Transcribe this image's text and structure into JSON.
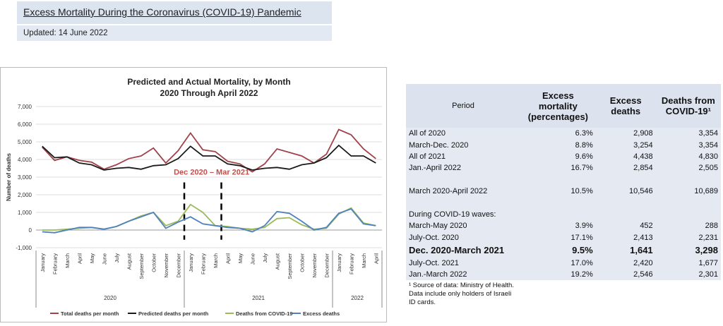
{
  "header": {
    "title": "Excess Mortality During the Coronavirus (COVID-19) Pandemic",
    "updated": "Updated: 14 June 2022"
  },
  "annotation": "Dec 2020 – Mar 2021",
  "colors": {
    "total": "#a0424a",
    "predicted": "#1a1a1a",
    "covid": "#9bbb59",
    "excess": "#4f81bd",
    "annotation": "#c0504d"
  },
  "chart_data": {
    "type": "line",
    "title": "Predicted and Actual Mortality, by Month",
    "subtitle": "2020 Through April 2022",
    "ylabel": "Number of deaths",
    "ylim": [
      -1000,
      7000
    ],
    "yticks": [
      "7,000",
      "6,000",
      "5,000",
      "4,000",
      "3,000",
      "2,000",
      "1,000",
      "0",
      "-1,000"
    ],
    "categories": [
      "January",
      "February",
      "March",
      "April",
      "May",
      "June",
      "July",
      "August",
      "September",
      "October",
      "November",
      "December",
      "January",
      "February",
      "March",
      "April",
      "May",
      "June",
      "July",
      "August",
      "September",
      "October",
      "November",
      "December",
      "January",
      "February",
      "March",
      "April"
    ],
    "years": [
      {
        "label": "2020",
        "from": 0,
        "to": 11
      },
      {
        "label": "2021",
        "from": 12,
        "to": 23
      },
      {
        "label": "2022",
        "from": 24,
        "to": 27
      }
    ],
    "series": [
      {
        "name": "Total deaths per month",
        "values": [
          4700,
          3950,
          4150,
          3950,
          3850,
          3450,
          3700,
          4050,
          4200,
          4650,
          3800,
          4500,
          5500,
          4550,
          4450,
          3900,
          3750,
          3300,
          3750,
          4600,
          4400,
          4200,
          3800,
          4300,
          5700,
          5400,
          4600,
          4050
        ]
      },
      {
        "name": "Predicted deaths per month",
        "values": [
          4750,
          4100,
          4150,
          3800,
          3700,
          3400,
          3500,
          3550,
          3450,
          3650,
          3700,
          4050,
          4750,
          4200,
          4200,
          3750,
          3650,
          3400,
          3500,
          3550,
          3450,
          3700,
          3800,
          4100,
          4800,
          4200,
          4200,
          3800
        ]
      },
      {
        "name": "Deaths from COVID-19",
        "values": [
          0,
          0,
          50,
          100,
          150,
          50,
          200,
          500,
          800,
          1000,
          250,
          500,
          1450,
          1000,
          250,
          200,
          100,
          50,
          150,
          650,
          700,
          300,
          50,
          100,
          900,
          1250,
          400,
          250
        ]
      },
      {
        "name": "Excess deaths",
        "values": [
          -100,
          -150,
          0,
          150,
          150,
          50,
          200,
          500,
          750,
          1000,
          100,
          450,
          750,
          350,
          250,
          150,
          100,
          -100,
          250,
          1050,
          950,
          500,
          0,
          150,
          950,
          1200,
          350,
          250
        ]
      }
    ]
  },
  "table": {
    "headers": {
      "period": "Period",
      "excess_pct": "Excess mortality (percentages)",
      "excess": "Excess deaths",
      "covid": "Deaths from COVID-19¹"
    },
    "rows": [
      {
        "period": "All of 2020",
        "pct": "6.3%",
        "excess": "2,908",
        "covid": "3,354"
      },
      {
        "period": "March-Dec. 2020",
        "pct": "8.8%",
        "excess": "3,254",
        "covid": "3,354"
      },
      {
        "period": "All of 2021",
        "pct": "9.6%",
        "excess": "4,438",
        "covid": "4,830"
      },
      {
        "period": "Jan.-April 2022",
        "pct": "16.7%",
        "excess": "2,854",
        "covid": "2,505"
      },
      {
        "period": "March 2020-April 2022",
        "pct": "10.5%",
        "excess": "10,546",
        "covid": "10,689"
      },
      {
        "period": "During COVID-19 waves:",
        "pct": "",
        "excess": "",
        "covid": ""
      },
      {
        "period": "March-May 2020",
        "pct": "3.9%",
        "excess": "452",
        "covid": "288"
      },
      {
        "period": "July-Oct. 2020",
        "pct": "17.1%",
        "excess": "2,413",
        "covid": "2,231"
      },
      {
        "period": "Dec. 2020-March 2021",
        "pct": "9.5%",
        "excess": "1,641",
        "covid": "3,298"
      },
      {
        "period": "July-Oct. 2021",
        "pct": "17.0%",
        "excess": "2,420",
        "covid": "1,677"
      },
      {
        "period": "Jan.-March 2022",
        "pct": "19.2%",
        "excess": "2,546",
        "covid": "2,301"
      }
    ],
    "footnote": "¹ Source of data: Ministry of Health. Data include only holders of Israeli ID cards."
  }
}
